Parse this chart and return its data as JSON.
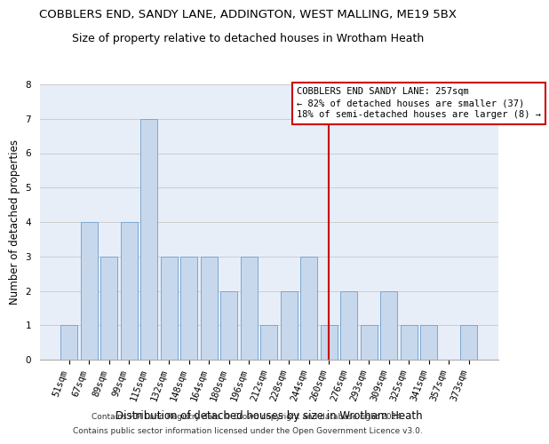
{
  "title": "COBBLERS END, SANDY LANE, ADDINGTON, WEST MALLING, ME19 5BX",
  "subtitle": "Size of property relative to detached houses in Wrotham Heath",
  "xlabel": "Distribution of detached houses by size in Wrotham Heath",
  "ylabel": "Number of detached properties",
  "categories": [
    "51sqm",
    "67sqm",
    "89sqm",
    "99sqm",
    "115sqm",
    "132sqm",
    "148sqm",
    "164sqm",
    "180sqm",
    "196sqm",
    "212sqm",
    "228sqm",
    "244sqm",
    "260sqm",
    "276sqm",
    "293sqm",
    "309sqm",
    "325sqm",
    "341sqm",
    "357sqm",
    "373sqm"
  ],
  "bar_values": [
    1,
    4,
    3,
    4,
    7,
    3,
    3,
    3,
    2,
    3,
    1,
    2,
    3,
    1,
    2,
    1,
    2,
    1,
    1,
    0,
    1
  ],
  "bar_color": "#c8d8ec",
  "bar_edge_color": "#7aa8d0",
  "grid_color": "#cccccc",
  "background_color": "#e8eef8",
  "vline_color": "#cc0000",
  "vline_category": "260sqm",
  "annotation_text": "COBBLERS END SANDY LANE: 257sqm\n← 82% of detached houses are smaller (37)\n18% of semi-detached houses are larger (8) →",
  "annotation_box_color": "#cc0000",
  "footer_line1": "Contains HM Land Registry data © Crown copyright and database right 2024.",
  "footer_line2": "Contains public sector information licensed under the Open Government Licence v3.0.",
  "ylim": [
    0,
    8
  ],
  "yticks": [
    0,
    1,
    2,
    3,
    4,
    5,
    6,
    7,
    8
  ],
  "title_fontsize": 9.5,
  "subtitle_fontsize": 9,
  "xlabel_fontsize": 8.5,
  "ylabel_fontsize": 8.5,
  "tick_fontsize": 7.5,
  "footer_fontsize": 6.5,
  "annot_fontsize": 7.5
}
